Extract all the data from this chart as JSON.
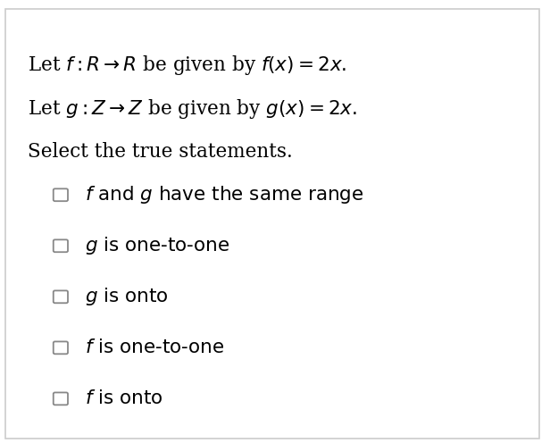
{
  "title_lines": [
    "Let $f: R \\rightarrow R$ be given by $f(x) = 2x.$",
    "Let $g: Z \\rightarrow Z$ be given by $g(x) = 2x.$",
    "Select the true statements."
  ],
  "options": [
    "$f$ and $g$ have the same range",
    "$g$ is one-to-one",
    "$g$ is onto",
    "$f$ is one-to-one",
    "$f$ is onto"
  ],
  "bg_color": "#ffffff",
  "border_color": "#cccccc",
  "text_color": "#000000",
  "checkbox_color": "#888888",
  "title_fontsize": 15.5,
  "option_fontsize": 15.5,
  "checkbox_size": 0.022,
  "figwidth": 6.16,
  "figheight": 4.96,
  "dpi": 100
}
